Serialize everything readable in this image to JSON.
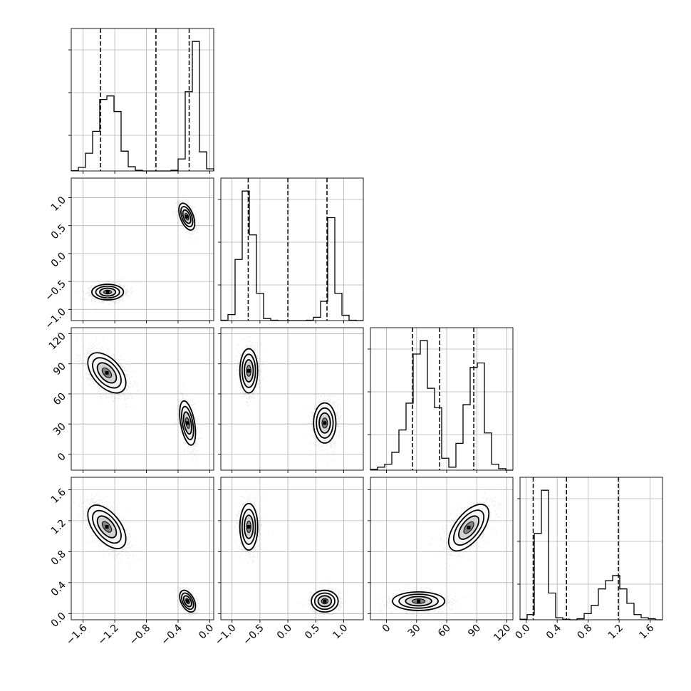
{
  "chart_data": {
    "type": "corner",
    "title": "",
    "grid": true,
    "quantile_lines": "dashed",
    "parameters": [
      {
        "range": [
          -1.75,
          0.05
        ],
        "ticks": [
          -1.6,
          -1.2,
          -0.8,
          -0.4,
          0.0
        ],
        "tick_labels": [
          "−1.6",
          "−1.2",
          "−0.8",
          "−0.4",
          "0.0"
        ]
      },
      {
        "range": [
          -1.2,
          1.35
        ],
        "ticks": [
          -1.0,
          -0.5,
          0.0,
          0.5,
          1.0
        ],
        "tick_labels": [
          "−1.0",
          "−0.5",
          "0.0",
          "0.5",
          "1.0"
        ]
      },
      {
        "range": [
          -16,
          126
        ],
        "ticks": [
          0,
          30,
          60,
          90,
          120
        ],
        "tick_labels": [
          "0",
          "30",
          "60",
          "90",
          "120"
        ]
      },
      {
        "range": [
          -0.08,
          1.76
        ],
        "ticks": [
          0.0,
          0.4,
          0.8,
          1.2,
          1.6
        ],
        "tick_labels": [
          "0.0",
          "0.4",
          "0.8",
          "1.2",
          "1.6"
        ]
      }
    ],
    "marginals": [
      {
        "bin_edges": [
          -1.75,
          -1.66,
          -1.57,
          -1.48,
          -1.39,
          -1.3,
          -1.21,
          -1.12,
          -1.03,
          -0.94,
          -0.85,
          -0.76,
          -0.67,
          -0.58,
          -0.49,
          -0.4,
          -0.31,
          -0.22,
          -0.13,
          -0.04,
          0.05
        ],
        "counts": [
          0.5,
          5,
          25,
          56,
          101,
          106,
          84,
          28,
          6,
          1,
          0,
          0,
          0,
          0,
          1,
          17,
          112,
          183,
          27,
          3
        ],
        "quantiles": [
          -1.38,
          -0.68,
          -0.26
        ]
      },
      {
        "bin_edges": [
          -1.2,
          -1.0725,
          -0.945,
          -0.8175,
          -0.69,
          -0.5625,
          -0.435,
          -0.3075,
          -0.18,
          -0.0525,
          0.075,
          0.2025,
          0.33,
          0.4575,
          0.585,
          0.7125,
          0.84,
          0.9675,
          1.095,
          1.2225,
          1.35
        ],
        "counts": [
          0.5,
          9,
          92,
          195,
          129,
          41,
          3,
          0.5,
          0,
          0,
          0,
          0,
          0.5,
          5,
          29,
          155,
          41,
          8,
          0.5,
          0
        ],
        "quantiles": [
          -0.71,
          0.0,
          0.7
        ]
      },
      {
        "bin_edges": [
          -16,
          -8.9,
          -1.8,
          5.3,
          12.4,
          19.5,
          26.6,
          33.7,
          40.8,
          47.9,
          55.0,
          62.1,
          69.2,
          76.3,
          83.4,
          90.5,
          97.6,
          104.7,
          111.8,
          118.9,
          126.0
        ],
        "counts": [
          0.5,
          2,
          4,
          12,
          27,
          45,
          78,
          87,
          55,
          42,
          8,
          2,
          18,
          44,
          69,
          72,
          25,
          4,
          1,
          0
        ],
        "quantiles": [
          26,
          53,
          87
        ]
      },
      {
        "bin_edges": [
          -0.08,
          0.012,
          0.104,
          0.196,
          0.288,
          0.38,
          0.472,
          0.564,
          0.656,
          0.748,
          0.84,
          0.932,
          1.024,
          1.116,
          1.208,
          1.3,
          1.392,
          1.484,
          1.576,
          1.668,
          1.76
        ],
        "counts": [
          0.5,
          5,
          84,
          126,
          26,
          2,
          0.5,
          0,
          1,
          6,
          14,
          30,
          38,
          43,
          30,
          16,
          5,
          2,
          1,
          0
        ],
        "quantiles": [
          0.09,
          0.52,
          1.19
        ]
      }
    ],
    "pairs": [
      {
        "row": 1,
        "col": 0,
        "modes": [
          {
            "mean": [
              -1.29,
              -0.69
            ],
            "sd": [
              0.1,
              0.07
            ],
            "rho": 0.0,
            "n": 2500
          },
          {
            "mean": [
              -0.29,
              0.66
            ],
            "sd": [
              0.05,
              0.12
            ],
            "rho": -0.5,
            "n": 1400
          }
        ]
      },
      {
        "row": 2,
        "col": 0,
        "modes": [
          {
            "mean": [
              -1.3,
              81
            ],
            "sd": [
              0.12,
              10
            ],
            "rho": -0.5,
            "n": 2500
          },
          {
            "mean": [
              -0.28,
              31
            ],
            "sd": [
              0.05,
              11
            ],
            "rho": -0.45,
            "n": 1400
          }
        ]
      },
      {
        "row": 2,
        "col": 1,
        "modes": [
          {
            "mean": [
              -0.7,
              83
            ],
            "sd": [
              0.08,
              11
            ],
            "rho": 0.0,
            "n": 2000
          },
          {
            "mean": [
              0.66,
              31
            ],
            "sd": [
              0.1,
              10
            ],
            "rho": 0.0,
            "n": 1800
          }
        ]
      },
      {
        "row": 3,
        "col": 0,
        "modes": [
          {
            "mean": [
              -1.3,
              1.12
            ],
            "sd": [
              0.12,
              0.14
            ],
            "rho": -0.55,
            "n": 2500
          },
          {
            "mean": [
              -0.28,
              0.16
            ],
            "sd": [
              0.05,
              0.07
            ],
            "rho": -0.45,
            "n": 1400
          }
        ]
      },
      {
        "row": 3,
        "col": 1,
        "modes": [
          {
            "mean": [
              -0.7,
              1.12
            ],
            "sd": [
              0.08,
              0.15
            ],
            "rho": 0.0,
            "n": 2000
          },
          {
            "mean": [
              0.66,
              0.16
            ],
            "sd": [
              0.12,
              0.07
            ],
            "rho": 0.0,
            "n": 1800
          }
        ]
      },
      {
        "row": 3,
        "col": 2,
        "modes": [
          {
            "mean": [
              32,
              0.16
            ],
            "sd": [
              13,
              0.06
            ],
            "rho": 0.0,
            "n": 2000
          },
          {
            "mean": [
              82,
              1.11
            ],
            "sd": [
              10,
              0.15
            ],
            "rho": 0.6,
            "n": 1800
          }
        ]
      }
    ]
  }
}
